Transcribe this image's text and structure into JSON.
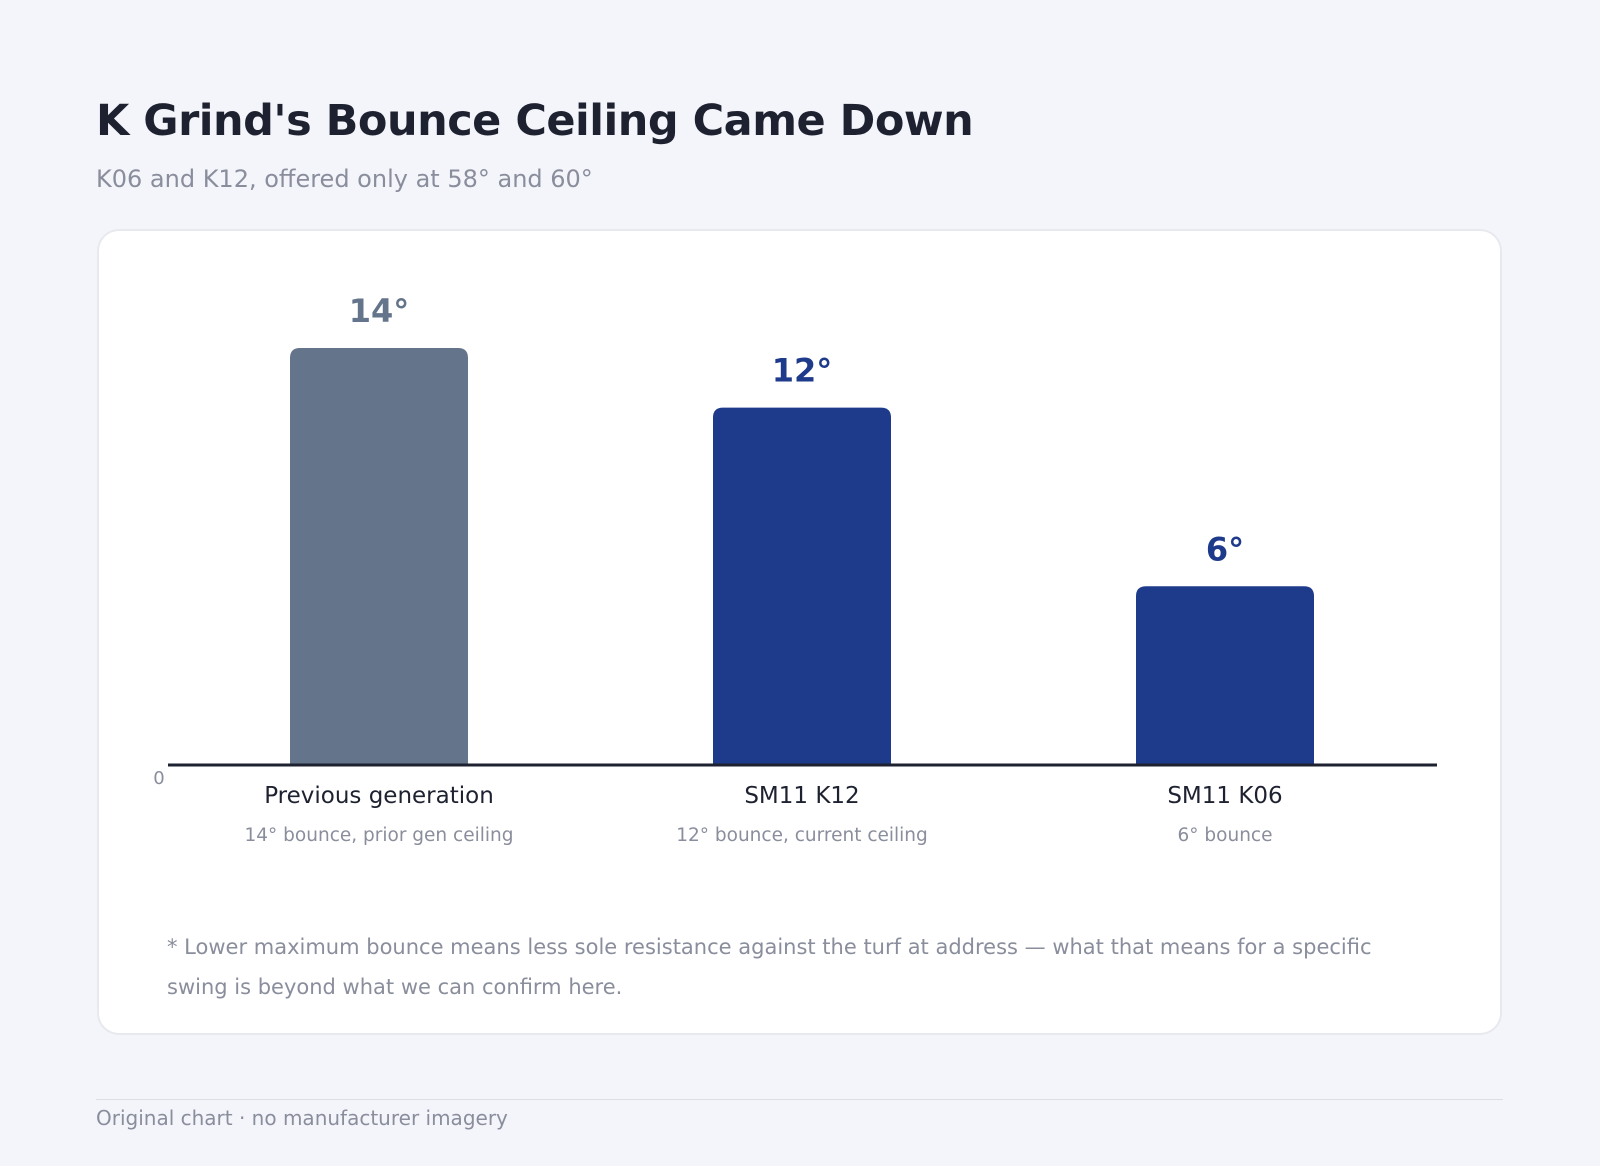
{
  "header": {
    "title": "K Grind's Bounce Ceiling Came Down",
    "subtitle": "K06 and K12, offered only at 58° and 60°"
  },
  "chart_data": {
    "type": "bar",
    "categories": [
      "Previous generation",
      "SM11 K12",
      "SM11 K06"
    ],
    "category_notes": [
      "14° bounce, prior gen ceiling",
      "12° bounce, current ceiling",
      "6° bounce"
    ],
    "values": [
      14,
      12,
      6
    ],
    "value_labels": [
      "14°",
      "12°",
      "6°"
    ],
    "bar_colors": [
      "#64748b",
      "#1e3a8a",
      "#1e3a8a"
    ],
    "value_label_colors": [
      "#64748b",
      "#1e3a8a",
      "#1e3a8a"
    ],
    "ylim": [
      0,
      14
    ],
    "y_tick_labels": [
      "0"
    ],
    "grid": false
  },
  "footnote": "* Lower maximum bounce means less sole resistance against the turf at address — what that means for a specific swing is beyond what we can confirm here.",
  "footer": {
    "text": "Original chart · no manufacturer imagery"
  }
}
